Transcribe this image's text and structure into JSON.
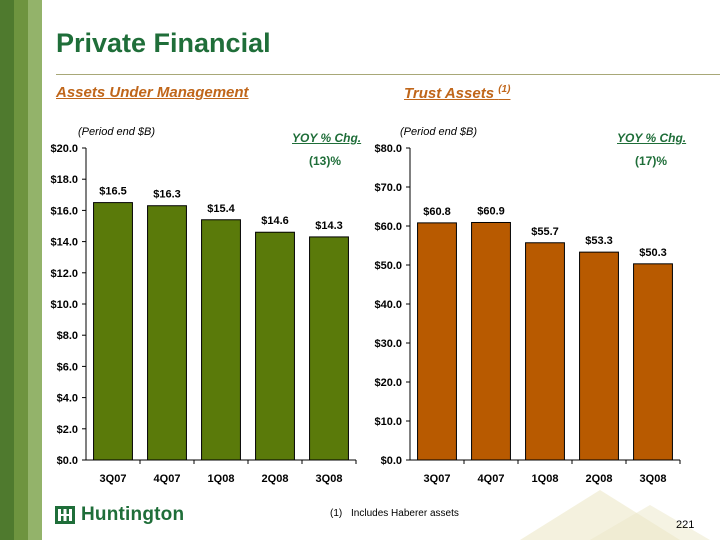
{
  "slide": {
    "title": "Private Financial",
    "page_number": "221",
    "logo_text": "Huntington",
    "footnote": {
      "marker": "(1)",
      "text": "Includes Haberer assets"
    }
  },
  "left_panel": {
    "heading": "Assets Under Management",
    "period_note": "(Period end $B)",
    "yoy_label": "YOY % Chg.",
    "yoy_value": "(13)%"
  },
  "right_panel": {
    "heading": "Trust Assets",
    "heading_note": "(1)",
    "period_note": "(Period end $B)",
    "yoy_label": "YOY % Chg.",
    "yoy_value": "(17)%"
  },
  "colors": {
    "title_green": "#1f6e39",
    "aum_bar": "#5a7a0a",
    "trust_bar": "#b85a00",
    "heading_orange": "#c0661a",
    "side_stripe": [
      "#4f7a2e",
      "#6e943f",
      "#93b36a"
    ]
  },
  "chart_data": [
    {
      "type": "bar",
      "title": "Assets Under Management",
      "categories": [
        "3Q07",
        "4Q07",
        "1Q08",
        "2Q08",
        "3Q08"
      ],
      "values": [
        16.5,
        16.3,
        15.4,
        14.6,
        14.3
      ],
      "value_labels": [
        "$16.5",
        "$16.3",
        "$15.4",
        "$14.6",
        "$14.3"
      ],
      "ylim": [
        0,
        20
      ],
      "yticks": [
        0,
        2,
        4,
        6,
        8,
        10,
        12,
        14,
        16,
        18,
        20
      ],
      "ytick_labels": [
        "$0.0",
        "$2.0",
        "$4.0",
        "$6.0",
        "$8.0",
        "$10.0",
        "$12.0",
        "$14.0",
        "$16.0",
        "$18.0",
        "$20.0"
      ],
      "bar_color": "#5a7a0a",
      "grid": false
    },
    {
      "type": "bar",
      "title": "Trust Assets",
      "categories": [
        "3Q07",
        "4Q07",
        "1Q08",
        "2Q08",
        "3Q08"
      ],
      "values": [
        60.8,
        60.9,
        55.7,
        53.3,
        50.3
      ],
      "value_labels": [
        "$60.8",
        "$60.9",
        "$55.7",
        "$53.3",
        "$50.3"
      ],
      "ylim": [
        0,
        80
      ],
      "yticks": [
        0,
        10,
        20,
        30,
        40,
        50,
        60,
        70,
        80
      ],
      "ytick_labels": [
        "$0.0",
        "$10.0",
        "$20.0",
        "$30.0",
        "$40.0",
        "$50.0",
        "$60.0",
        "$70.0",
        "$80.0"
      ],
      "bar_color": "#b85a00",
      "grid": false
    }
  ]
}
